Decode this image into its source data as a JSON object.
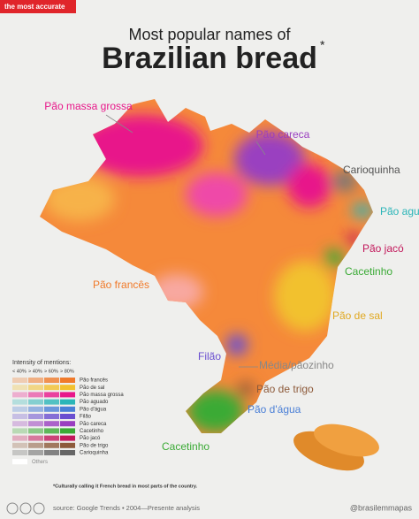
{
  "badge": "the most accurate",
  "header": {
    "subtitle": "Most popular names of",
    "title": "Brazilian bread",
    "asterisk": "*"
  },
  "map_labels": [
    "Pão massa grossa",
    "Pão careca",
    "Carioquinha",
    "Pão aguado",
    "Pão jacó",
    "Cacetinho",
    "Pão francês",
    "Pão de sal",
    "Filão",
    "Média/pãozinho",
    "Pão de trigo",
    "Pão d'água",
    "Cacetinho"
  ],
  "legend": {
    "title": "Intensity of mentions:",
    "levels": [
      "< 40%",
      "> 40%",
      "> 60%",
      "> 80%"
    ],
    "items": [
      {
        "name": "Pão francês",
        "color": "#f07a2a"
      },
      {
        "name": "Pão de sal",
        "color": "#f2c12e"
      },
      {
        "name": "Pão massa grossa",
        "color": "#e8178a"
      },
      {
        "name": "Pão aguado",
        "color": "#2bb5b8"
      },
      {
        "name": "Pão d'água",
        "color": "#4a7fd6"
      },
      {
        "name": "Filão",
        "color": "#6a4fd0"
      },
      {
        "name": "Pão careca",
        "color": "#9a3fc0"
      },
      {
        "name": "Cacetinho",
        "color": "#3aaa35"
      },
      {
        "name": "Pão jacó",
        "color": "#c2185b"
      },
      {
        "name": "Pão de trigo",
        "color": "#8d5a3a"
      },
      {
        "name": "Carioquinha",
        "color": "#666666"
      }
    ],
    "others": "Others"
  },
  "footnote": "*Culturally calling it French bread in most parts of the country.",
  "footer": {
    "source": "source: Google Trends • 2004—Presente analysis",
    "handle": "@brasilemmapas"
  }
}
